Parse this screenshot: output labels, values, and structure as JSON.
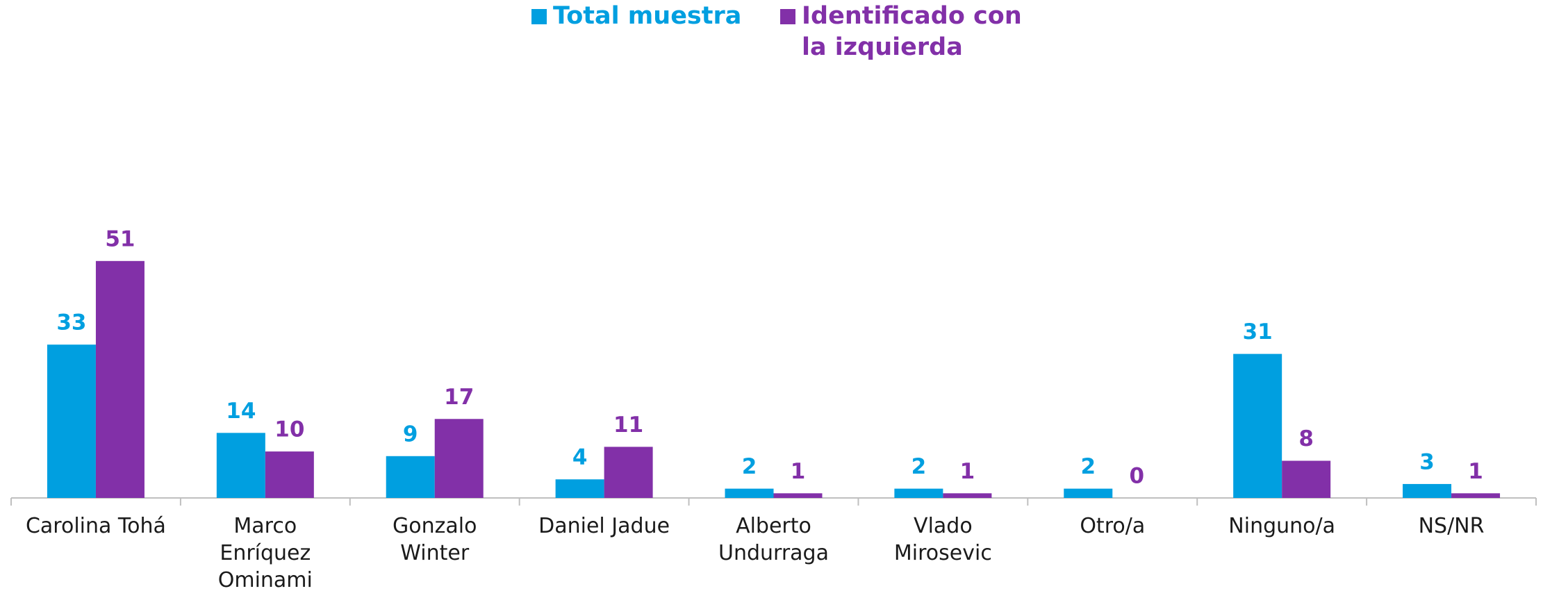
{
  "chart_data": {
    "type": "bar",
    "categories": [
      "Carolina Tohá",
      "Marco\nEnríquez\nOminami",
      "Gonzalo\nWinter",
      "Daniel Jadue",
      "Alberto\nUndurraga",
      "Vlado\nMirosevic",
      "Otro/a",
      "Ninguno/a",
      "NS/NR"
    ],
    "series": [
      {
        "name": "Total muestra",
        "color": "#009fe0",
        "values": [
          33,
          14,
          9,
          4,
          2,
          2,
          2,
          31,
          3
        ]
      },
      {
        "name": "Identificado con\nla izquierda",
        "color": "#8230a8",
        "values": [
          51,
          10,
          17,
          11,
          1,
          1,
          0,
          8,
          1
        ]
      }
    ]
  }
}
